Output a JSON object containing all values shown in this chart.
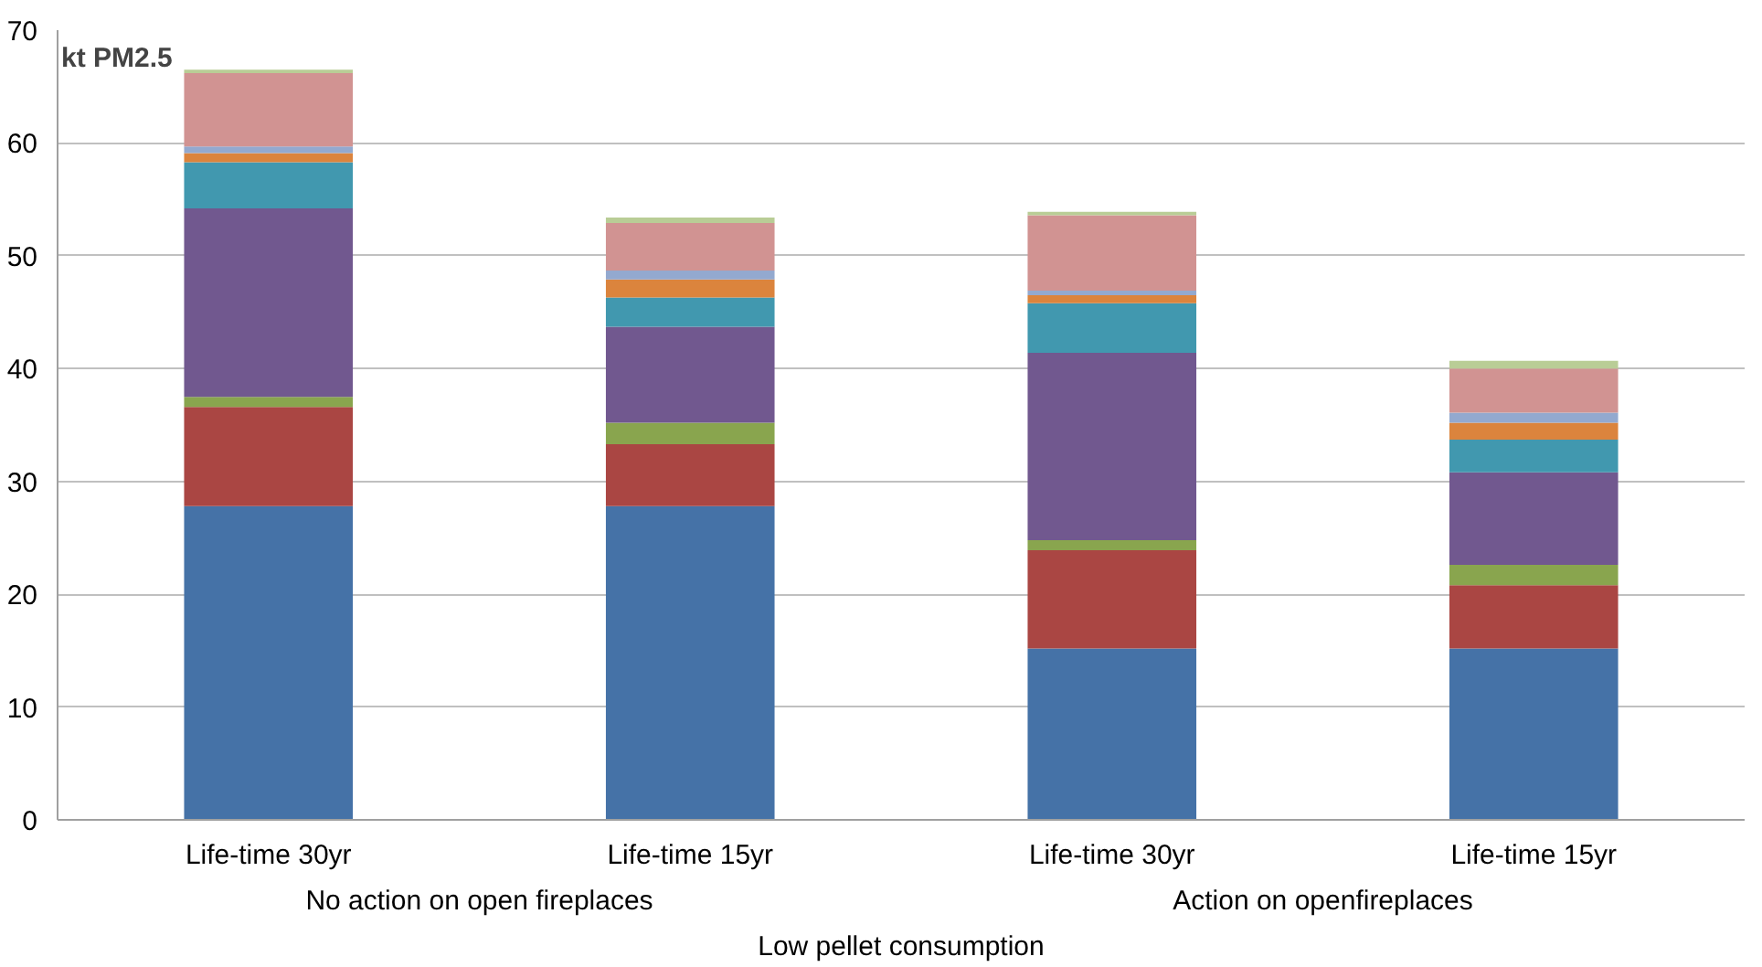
{
  "chart_data": {
    "type": "bar",
    "stacked": true,
    "ylabel": "kt PM2.5",
    "categories": [
      "Life-time 30yr",
      "Life-time 15yr",
      "Life-time 30yr",
      "Life-time 15yr"
    ],
    "annotations": [
      "No action on open fireplaces",
      "Action on openfireplaces",
      "Low pellet consumption"
    ],
    "series": [
      {
        "color": "#4572a7",
        "values": [
          27.8,
          27.8,
          15.2,
          15.2
        ]
      },
      {
        "color": "#aa4643",
        "values": [
          8.8,
          5.5,
          8.7,
          5.6
        ]
      },
      {
        "color": "#89a54e",
        "values": [
          0.9,
          1.9,
          0.9,
          1.8
        ]
      },
      {
        "color": "#71588f",
        "values": [
          16.7,
          8.5,
          16.6,
          8.2
        ]
      },
      {
        "color": "#4198af",
        "values": [
          4.1,
          2.6,
          4.4,
          2.9
        ]
      },
      {
        "color": "#db843d",
        "values": [
          0.8,
          1.6,
          0.7,
          1.5
        ]
      },
      {
        "color": "#93a9cf",
        "values": [
          0.6,
          0.8,
          0.4,
          0.9
        ]
      },
      {
        "color": "#d19392",
        "values": [
          6.5,
          4.2,
          6.7,
          3.9
        ]
      },
      {
        "color": "#b9cd96",
        "values": [
          0.3,
          0.5,
          0.3,
          0.7
        ]
      }
    ],
    "ylim": [
      0,
      70
    ],
    "yticks": [
      0,
      10,
      20,
      30,
      40,
      50,
      60,
      70
    ],
    "grid": "y"
  }
}
